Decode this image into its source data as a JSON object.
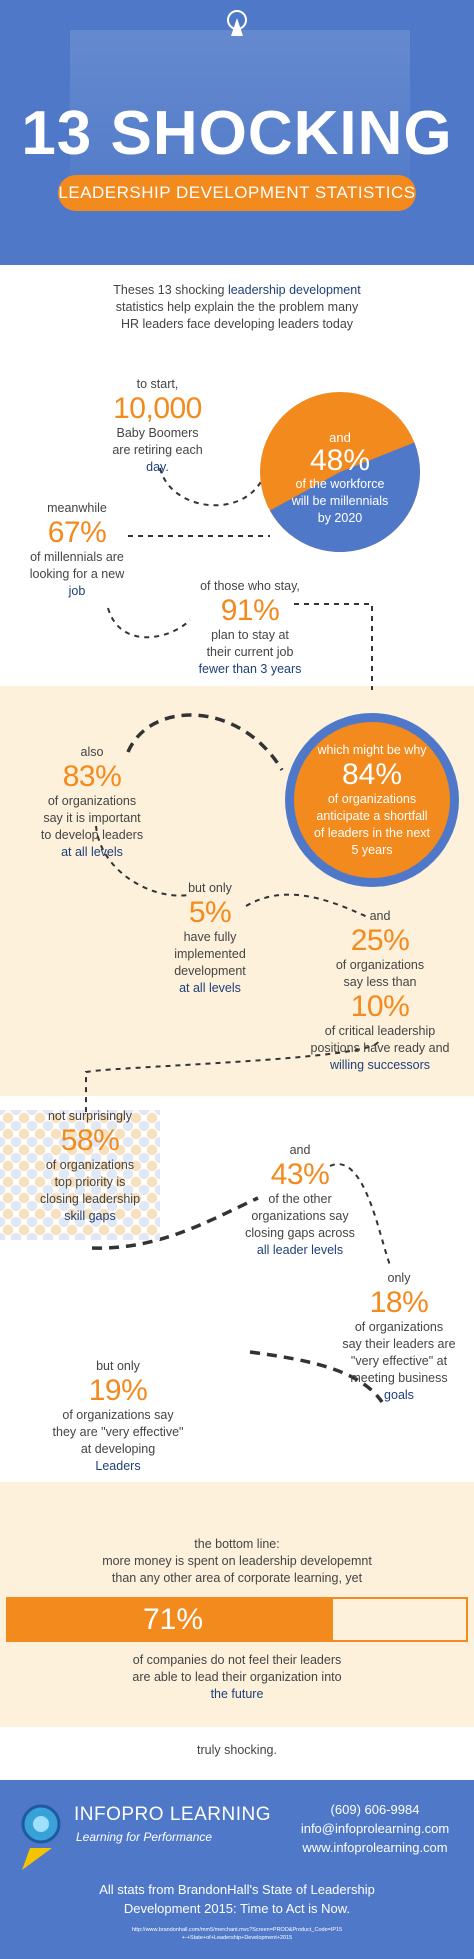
{
  "header": {
    "title": "13 SHOCKING",
    "subtitle": "LEADERSHIP DEVELOPMENT STATISTICS"
  },
  "intro": {
    "line1_pre": "Theses 13 shocking ",
    "line1_em": "leadership development",
    "line2": "statistics help explain the the problem many",
    "line3": "HR leaders face developing leaders today"
  },
  "s1": {
    "pre": "to start,",
    "value": "10,000",
    "l1": "Baby Boomers",
    "l2": "are retiring each",
    "l3": "day."
  },
  "s2": {
    "pre": "and",
    "value": "48%",
    "l1": "of the workforce",
    "l2": "will be millennials",
    "l3": "by 2020",
    "pie_fraction": 0.48
  },
  "s3": {
    "pre": "meanwhile",
    "value": "67%",
    "l1": "of millennials are",
    "l2": "looking for a new",
    "l3": "job"
  },
  "s4": {
    "pre": "of those who stay,",
    "value": "91%",
    "l1": "plan to stay at",
    "l2": "their current job",
    "l3": "fewer than 3 years"
  },
  "s5": {
    "pre": "also",
    "value": "83%",
    "l1": "of organizations",
    "l2": "say it is important",
    "l3": "to develop leaders",
    "l4": "at all levels"
  },
  "s6": {
    "pre": "which might be why",
    "value": "84%",
    "l1": "of organizations",
    "l2": "anticipate a shortfall",
    "l3": "of leaders in the next",
    "l4": "5 years"
  },
  "s7": {
    "pre": "but only",
    "value": "5%",
    "l1": "have fully",
    "l2": "implemented",
    "l3": "development",
    "l4": "at all levels"
  },
  "s8": {
    "pre": "and",
    "value": "25%",
    "l1": "of organizations",
    "l2": "say less than",
    "value2": "10%",
    "l3": "of critical leadership",
    "l4": "positions have ready and",
    "l5": "willing successors"
  },
  "s9": {
    "pre": "not surprisingly",
    "value": "58%",
    "l1": "of organizations",
    "l2": "top priority is",
    "l3": "closing leadership",
    "l4": "skill gaps"
  },
  "s10": {
    "pre": "and",
    "value": "43%",
    "l1": "of the other",
    "l2": "organizations say",
    "l3": "closing gaps across",
    "l4": "all leader levels"
  },
  "s11": {
    "pre": "only",
    "value": "18%",
    "l1": "of organizations",
    "l2": "say their leaders are",
    "l3": "\"very effective\" at",
    "l4": "meeting business",
    "l5": "goals"
  },
  "s12": {
    "pre": "but only",
    "value": "19%",
    "l1": "of organizations say",
    "l2": "they are \"very effective\"",
    "l3": "at developing",
    "l4": "Leaders"
  },
  "s13": {
    "pre1": "the bottom line:",
    "pre2": "more money is spent on leadership developemnt",
    "pre3": "than any other area of corporate learning, yet",
    "value": "71%",
    "bar_fraction": 0.71,
    "l1": "of companies do not feel their leaders",
    "l2": "are able to lead their organization into",
    "l3": "the future"
  },
  "closing": "truly shocking.",
  "footer": {
    "brand": "INFOPRO LEARNING",
    "tagline": "Learning for Performance",
    "phone": "(609) 606-9984",
    "email": "info@infoprolearning.com",
    "website": "www.infoprolearning.com",
    "source1": "All stats from BrandonHall's State of Leadership",
    "source2": "Development 2015: Time to Act is Now.",
    "url1": "http://www.brandonhall.com/mm5/merchant.mvc?Screen=PROD&Product_Code=IP15",
    "url2": "+-+State+of+Leadership+Development+2015"
  },
  "colors": {
    "orange": "#f28a1e",
    "blue": "#4f79c8",
    "navy": "#1e3f7a",
    "cream": "#fdf1dc"
  }
}
